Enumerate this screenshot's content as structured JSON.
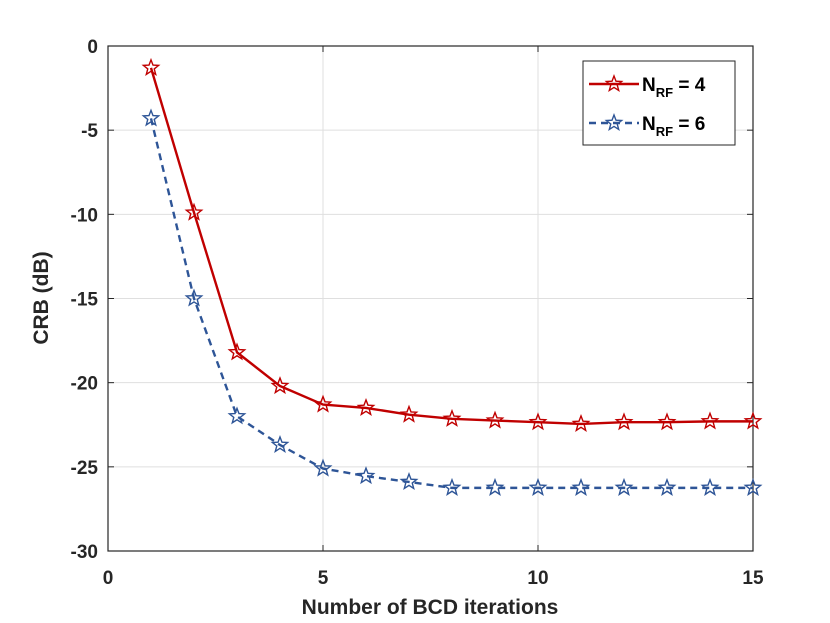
{
  "chart_data": {
    "type": "line",
    "title": "",
    "xlabel": "Number of BCD iterations",
    "ylabel": "CRB (dB)",
    "xlim": [
      0,
      15
    ],
    "ylim": [
      -30,
      0
    ],
    "xticks": [
      0,
      5,
      10,
      15
    ],
    "yticks": [
      0,
      -5,
      -10,
      -15,
      -20,
      -25,
      -30
    ],
    "grid": true,
    "legend_position": "top-right",
    "x": [
      1,
      2,
      3,
      4,
      5,
      6,
      7,
      8,
      9,
      10,
      11,
      12,
      13,
      14,
      15
    ],
    "series": [
      {
        "name": "N_RF = 4",
        "legend_main": "N",
        "legend_sub": "RF",
        "legend_tail": " = 4",
        "color": "#c00000",
        "line_style": "solid",
        "marker": "star",
        "values": [
          -1.3,
          -9.9,
          -18.2,
          -20.2,
          -21.3,
          -21.5,
          -21.9,
          -22.15,
          -22.25,
          -22.35,
          -22.45,
          -22.35,
          -22.35,
          -22.3,
          -22.3
        ]
      },
      {
        "name": "N_RF = 6",
        "legend_main": "N",
        "legend_sub": "RF",
        "legend_tail": " = 6",
        "color": "#2e5597",
        "line_style": "dashed",
        "marker": "star",
        "values": [
          -4.3,
          -15.0,
          -22.0,
          -23.7,
          -25.1,
          -25.55,
          -25.9,
          -26.25,
          -26.25,
          -26.25,
          -26.25,
          -26.25,
          -26.25,
          -26.25,
          -26.25
        ]
      }
    ]
  }
}
